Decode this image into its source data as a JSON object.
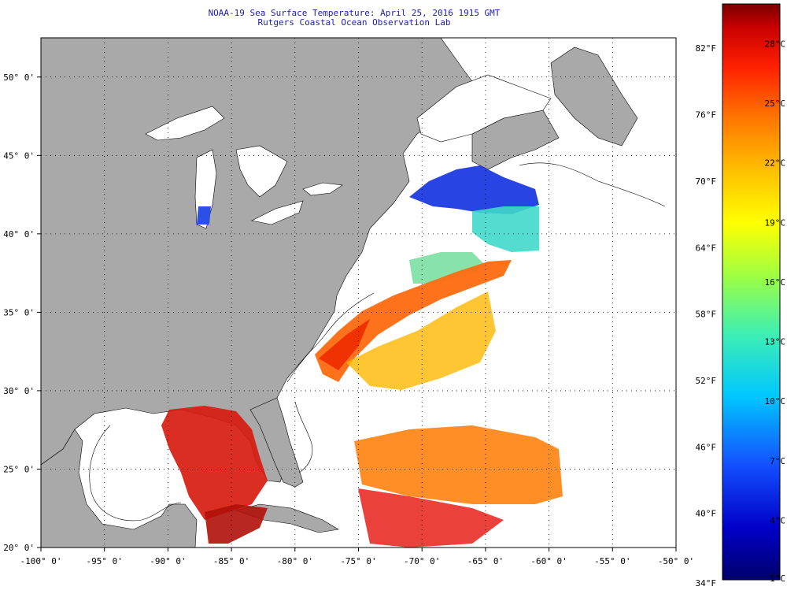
{
  "title_line1": "NOAA-19 Sea Surface Temperature:  April 25, 2016 1915 GMT",
  "title_line2": "Rutgers Coastal Ocean Observation Lab",
  "map": {
    "lon_range": [
      -100,
      -50
    ],
    "lat_range": [
      20,
      52.5
    ],
    "lon_ticks": [
      {
        "value": -100,
        "label": "-100° 0'"
      },
      {
        "value": -95,
        "label": "-95° 0'"
      },
      {
        "value": -90,
        "label": "-90° 0'"
      },
      {
        "value": -85,
        "label": "-85° 0'"
      },
      {
        "value": -80,
        "label": "-80° 0'"
      },
      {
        "value": -75,
        "label": "-75° 0'"
      },
      {
        "value": -70,
        "label": "-70° 0'"
      },
      {
        "value": -65,
        "label": "-65° 0'"
      },
      {
        "value": -60,
        "label": "-60° 0'"
      },
      {
        "value": -55,
        "label": "-55° 0'"
      },
      {
        "value": -50,
        "label": "-50° 0'"
      }
    ],
    "lat_ticks": [
      {
        "value": 20,
        "label": "20° 0'"
      },
      {
        "value": 25,
        "label": "25° 0'"
      },
      {
        "value": 30,
        "label": "30° 0'"
      },
      {
        "value": 35,
        "label": "35° 0'"
      },
      {
        "value": 40,
        "label": "40° 0'"
      },
      {
        "value": 45,
        "label": "45° 0'"
      },
      {
        "value": 50,
        "label": "50° 0'"
      }
    ],
    "colors": {
      "land": "#a9a9a9",
      "no_data": "#ffffff",
      "grid": "#000000"
    }
  },
  "colorbar": {
    "celsius_range": [
      1,
      30
    ],
    "fahrenheit_range": [
      34,
      86
    ],
    "celsius_labels": [
      {
        "value": 1,
        "label": "1°C"
      },
      {
        "value": 4,
        "label": "4°C"
      },
      {
        "value": 7,
        "label": "7°C"
      },
      {
        "value": 10,
        "label": "10°C"
      },
      {
        "value": 13,
        "label": "13°C"
      },
      {
        "value": 16,
        "label": "16°C"
      },
      {
        "value": 19,
        "label": "19°C"
      },
      {
        "value": 22,
        "label": "22°C"
      },
      {
        "value": 25,
        "label": "25°C"
      },
      {
        "value": 28,
        "label": "28°C"
      }
    ],
    "fahrenheit_labels": [
      {
        "value": 34,
        "label": "34°F"
      },
      {
        "value": 40,
        "label": "40°F"
      },
      {
        "value": 46,
        "label": "46°F"
      },
      {
        "value": 52,
        "label": "52°F"
      },
      {
        "value": 58,
        "label": "58°F"
      },
      {
        "value": 64,
        "label": "64°F"
      },
      {
        "value": 70,
        "label": "70°F"
      },
      {
        "value": 76,
        "label": "76°F"
      },
      {
        "value": 82,
        "label": "82°F"
      }
    ],
    "color_stops": [
      "#00006b",
      "#0000c8",
      "#1450ff",
      "#00c8ff",
      "#40f0b0",
      "#a0ff40",
      "#ffff00",
      "#ffc000",
      "#ff7800",
      "#ff2000",
      "#c80000",
      "#7a0000"
    ]
  }
}
